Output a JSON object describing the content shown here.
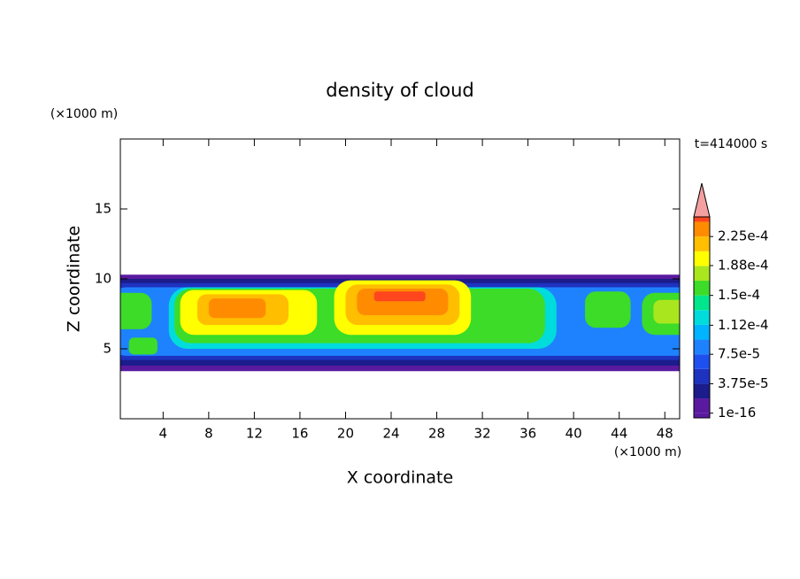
{
  "chart_data": {
    "type": "contour",
    "title": "density of cloud",
    "x_label": "X coordinate",
    "y_label": "Z coordinate",
    "x_unit": "(×1000 m)",
    "y_unit": "(×1000 m)",
    "annotation": "t=414000 s",
    "xlim": [
      0.25,
      49.3
    ],
    "ylim": [
      0,
      20
    ],
    "xticks": [
      4,
      8,
      12,
      16,
      20,
      24,
      28,
      32,
      36,
      40,
      44,
      48
    ],
    "yticks": [
      5,
      10,
      15
    ],
    "colorbar": {
      "clim": [
        -6e-06,
        0.00025
      ],
      "levels": [
        1e-16,
        1.875e-05,
        3.75e-05,
        5.625e-05,
        7.5e-05,
        9.375e-05,
        0.0001125,
        0.00013125,
        0.00015,
        0.00016875,
        0.0001875,
        0.00020625,
        0.000225,
        0.00024375
      ],
      "colors": [
        "#5a1aa0",
        "#1c1c8c",
        "#1e32c0",
        "#1e50f0",
        "#1e82ff",
        "#00b4ff",
        "#00dcdc",
        "#00e68c",
        "#3cdc28",
        "#aae61e",
        "#ffff00",
        "#ffbe00",
        "#ff8c00",
        "#ff461e"
      ],
      "extend_color": "#f4a0a0",
      "ticks": [
        {
          "value": 1e-16,
          "label": "1e-16"
        },
        {
          "value": 3.75e-05,
          "label": "3.75e-5"
        },
        {
          "value": 7.5e-05,
          "label": "7.5e-5"
        },
        {
          "value": 0.000112,
          "label": "1.12e-4"
        },
        {
          "value": 0.00015,
          "label": "1.5e-4"
        },
        {
          "value": 0.000188,
          "label": "1.88e-4"
        },
        {
          "value": 0.000225,
          "label": "2.25e-4"
        }
      ]
    },
    "field": [
      {
        "x": [
          -3,
          53
        ],
        "z": [
          3.4,
          10.3
        ],
        "value": 1e-16
      },
      {
        "x": [
          -3,
          53
        ],
        "z": [
          3.8,
          10.0
        ],
        "value": 1.875e-05
      },
      {
        "x": [
          -3,
          53
        ],
        "z": [
          4.2,
          9.7
        ],
        "value": 3.75e-05
      },
      {
        "x": [
          -1,
          51
        ],
        "z": [
          4.5,
          9.4
        ],
        "value": 7.5e-05
      },
      {
        "x": [
          4.5,
          38.5
        ],
        "z": [
          5.0,
          9.4
        ],
        "value": 0.0001125
      },
      {
        "x": [
          5,
          37.5
        ],
        "z": [
          5.4,
          9.3
        ],
        "value": 0.00015
      },
      {
        "x": [
          5.5,
          17.5
        ],
        "z": [
          6.0,
          9.2
        ],
        "value": 0.0001875
      },
      {
        "x": [
          19,
          31
        ],
        "z": [
          6.0,
          9.9
        ],
        "value": 0.0001875
      },
      {
        "x": [
          7,
          15
        ],
        "z": [
          6.7,
          8.9
        ],
        "value": 0.00020625
      },
      {
        "x": [
          20,
          30
        ],
        "z": [
          6.7,
          9.6
        ],
        "value": 0.00020625
      },
      {
        "x": [
          8,
          13
        ],
        "z": [
          7.2,
          8.6
        ],
        "value": 0.000225
      },
      {
        "x": [
          21,
          29
        ],
        "z": [
          7.4,
          9.3
        ],
        "value": 0.000225
      },
      {
        "x": [
          22.5,
          27
        ],
        "z": [
          8.4,
          9.1
        ],
        "value": 0.00024375
      },
      {
        "x": [
          41,
          45
        ],
        "z": [
          6.5,
          9.1
        ],
        "value": 0.00015
      },
      {
        "x": [
          46,
          51
        ],
        "z": [
          6.0,
          9.0
        ],
        "value": 0.00015
      },
      {
        "x": [
          47,
          51
        ],
        "z": [
          6.8,
          8.5
        ],
        "value": 0.00016875
      },
      {
        "x": [
          -2,
          3
        ],
        "z": [
          6.4,
          9.0
        ],
        "value": 0.00015
      },
      {
        "x": [
          1,
          3.5
        ],
        "z": [
          4.6,
          5.8
        ],
        "value": 0.00015
      }
    ]
  }
}
